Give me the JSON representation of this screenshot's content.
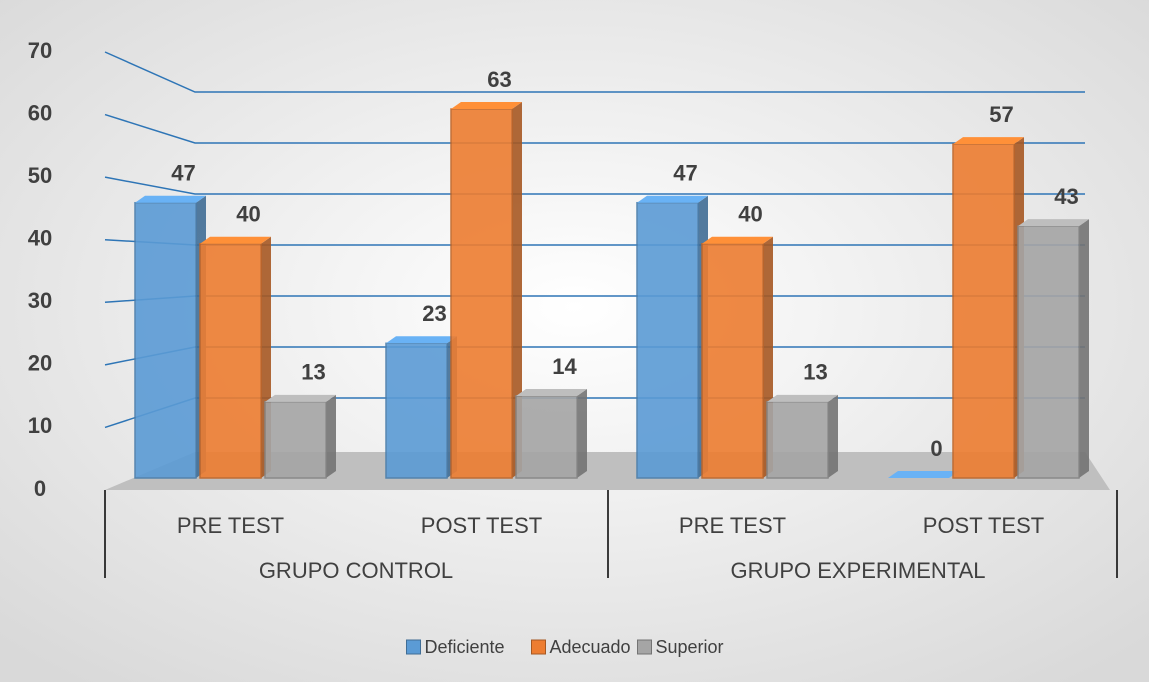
{
  "chart_data": {
    "type": "bar3d",
    "groups": [
      {
        "label": "GRUPO CONTROL",
        "categories": [
          "PRE TEST",
          "POST TEST"
        ]
      },
      {
        "label": "GRUPO EXPERIMENTAL",
        "categories": [
          "PRE TEST",
          "POST TEST"
        ]
      }
    ],
    "series": [
      {
        "name": "Deficiente",
        "color": "#5b9bd5",
        "values": [
          47,
          23,
          47,
          0
        ]
      },
      {
        "name": "Adecuado",
        "color": "#ed7d31",
        "values": [
          40,
          63,
          40,
          57
        ]
      },
      {
        "name": "Superior",
        "color": "#a5a5a5",
        "values": [
          13,
          14,
          13,
          43
        ]
      }
    ],
    "ylim": [
      0,
      70
    ],
    "yticks": [
      0,
      10,
      20,
      30,
      40,
      50,
      60,
      70
    ],
    "grid": true,
    "legend": "bottom"
  }
}
